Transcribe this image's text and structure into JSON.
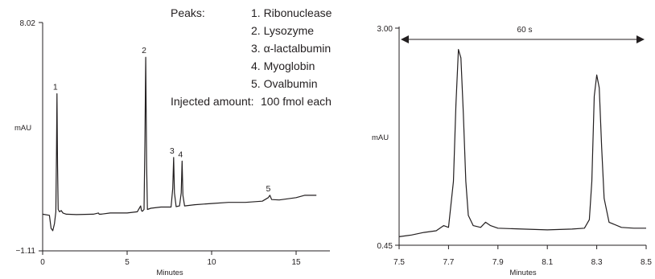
{
  "chart_data": [
    {
      "type": "line",
      "xlabel": "Minutes",
      "ylabel": "mAU",
      "xlim": [
        0,
        17
      ],
      "ylim": [
        -1.11,
        8.02
      ],
      "x_ticks": [
        0,
        5,
        10,
        15
      ],
      "y_tick_labels": [
        "8.02",
        "−1.11"
      ],
      "legend_title": "Peaks:",
      "legend_items": [
        "1. Ribonuclease",
        "2. Lysozyme",
        "3. α-lactalbumin",
        "4. Myoglobin",
        "5. Ovalbumin"
      ],
      "injected_label": "Injected amount:",
      "injected_value": "100 fmol each",
      "peaks": [
        {
          "label": "1",
          "x": 0.85,
          "y": 5.0
        },
        {
          "label": "2",
          "x": 6.1,
          "y": 6.55
        },
        {
          "label": "3",
          "x": 7.75,
          "y": 2.3
        },
        {
          "label": "4",
          "x": 8.25,
          "y": 2.15
        },
        {
          "label": "5",
          "x": 13.45,
          "y": 0.7
        }
      ],
      "series": [
        {
          "x": [
            0,
            0.4,
            0.5,
            0.6,
            0.7,
            0.78,
            0.82,
            0.85,
            0.88,
            0.92,
            1.0,
            1.1,
            1.2,
            1.4,
            2.0,
            3.0,
            3.3,
            3.35,
            3.45,
            4.0,
            5.0,
            5.6,
            5.8,
            5.85,
            5.9,
            6.0,
            6.05,
            6.1,
            6.15,
            6.2,
            6.4,
            7.0,
            7.6,
            7.7,
            7.75,
            7.8,
            7.9,
            8.1,
            8.2,
            8.25,
            8.3,
            8.4,
            9.0,
            10.0,
            11.0,
            12.0,
            13.0,
            13.35,
            13.45,
            13.55,
            14.0,
            15.0,
            15.5,
            16.2
          ],
          "y": [
            -0.1,
            -0.15,
            -0.7,
            -0.8,
            -0.5,
            0.0,
            2.5,
            5.0,
            2.0,
            0.1,
            0.0,
            0.05,
            -0.05,
            -0.1,
            -0.12,
            -0.1,
            -0.05,
            -0.1,
            -0.1,
            -0.05,
            -0.05,
            0.0,
            0.25,
            0.05,
            0.02,
            0.1,
            3.0,
            6.55,
            2.0,
            0.1,
            0.15,
            0.2,
            0.2,
            1.0,
            2.3,
            0.8,
            0.22,
            0.25,
            0.8,
            2.15,
            0.7,
            0.25,
            0.3,
            0.35,
            0.4,
            0.4,
            0.45,
            0.6,
            0.7,
            0.52,
            0.5,
            0.6,
            0.7,
            0.7
          ]
        }
      ]
    },
    {
      "type": "line",
      "xlabel": "Minutes",
      "ylabel": "mAU",
      "xlim": [
        7.5,
        8.5
      ],
      "ylim": [
        0.45,
        3.0
      ],
      "x_ticks": [
        "7.5",
        "7.7",
        "7.9",
        "8.1",
        "8.3",
        "8.5"
      ],
      "y_tick_labels": [
        "3.00",
        "0.45"
      ],
      "span_label": "60 s",
      "series": [
        {
          "x": [
            7.5,
            7.55,
            7.6,
            7.65,
            7.68,
            7.7,
            7.72,
            7.73,
            7.74,
            7.75,
            7.76,
            7.77,
            7.78,
            7.8,
            7.83,
            7.85,
            7.87,
            7.9,
            8.0,
            8.1,
            8.2,
            8.25,
            8.27,
            8.28,
            8.29,
            8.3,
            8.31,
            8.32,
            8.33,
            8.35,
            8.4,
            8.45,
            8.5
          ],
          "y": [
            0.55,
            0.57,
            0.6,
            0.62,
            0.68,
            0.66,
            1.2,
            2.1,
            2.75,
            2.65,
            2.0,
            1.2,
            0.8,
            0.68,
            0.66,
            0.72,
            0.68,
            0.65,
            0.64,
            0.63,
            0.64,
            0.65,
            0.75,
            1.2,
            2.2,
            2.45,
            2.3,
            1.6,
            1.0,
            0.72,
            0.66,
            0.65,
            0.65
          ]
        }
      ]
    }
  ]
}
